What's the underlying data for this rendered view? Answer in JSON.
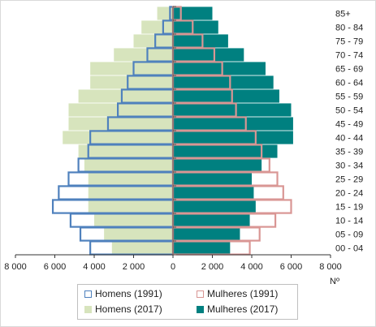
{
  "chart_data": {
    "type": "bar",
    "orientation": "horizontal",
    "style": "population-pyramid",
    "categories": [
      "00 - 04",
      "05 - 09",
      "10 - 14",
      "15 - 19",
      "20 - 24",
      "25 - 29",
      "30 - 34",
      "35 - 39",
      "40 - 44",
      "45 - 49",
      "50 - 54",
      "55 - 59",
      "60 - 64",
      "65 - 69",
      "70 - 74",
      "75 - 79",
      "80 - 84",
      "85+"
    ],
    "series": [
      {
        "name": "Homens (1991)",
        "side": "left",
        "style": "outline",
        "color": "#4f81bd",
        "values": [
          4200,
          4700,
          5200,
          6100,
          5800,
          5300,
          4800,
          4300,
          4200,
          3300,
          2800,
          2600,
          2300,
          2000,
          1300,
          900,
          500,
          150
        ]
      },
      {
        "name": "Mulheres (1991)",
        "side": "right",
        "style": "outline",
        "color": "#d99694",
        "values": [
          3900,
          4400,
          5200,
          6000,
          5600,
          5300,
          4900,
          4500,
          4200,
          3700,
          3200,
          3000,
          2900,
          2500,
          2100,
          1500,
          1000,
          400
        ]
      },
      {
        "name": "Homens (2017)",
        "side": "left",
        "style": "fill",
        "color": "#d7e4bd",
        "values": [
          3100,
          3500,
          4000,
          4300,
          4300,
          4300,
          4500,
          4800,
          5600,
          5300,
          5300,
          4800,
          4200,
          4200,
          3000,
          2000,
          1600,
          800
        ]
      },
      {
        "name": "Mulheres (2017)",
        "side": "right",
        "style": "fill",
        "color": "#008080",
        "values": [
          2900,
          3400,
          3900,
          4200,
          4100,
          4000,
          4500,
          5300,
          6100,
          6100,
          6000,
          5400,
          5100,
          4700,
          3600,
          2800,
          2300,
          2000
        ]
      }
    ],
    "xlabel": "Nº",
    "xlim": [
      -8000,
      8000
    ],
    "xticks": [
      -8000,
      -6000,
      -4000,
      -2000,
      0,
      2000,
      4000,
      6000,
      8000
    ],
    "xtick_labels": [
      "8 000",
      "6 000",
      "4 000",
      "2 000",
      "0",
      "2 000",
      "4 000",
      "6 000",
      "8 000"
    ],
    "grid": false,
    "legend_position": "bottom"
  },
  "legend": {
    "items": [
      {
        "label": "Homens (1991)",
        "style": "outline",
        "color": "#4f81bd"
      },
      {
        "label": "Mulheres (1991)",
        "style": "outline",
        "color": "#d99694"
      },
      {
        "label": "Homens (2017)",
        "style": "fill",
        "color": "#d7e4bd"
      },
      {
        "label": "Mulheres (2017)",
        "style": "fill",
        "color": "#008080"
      }
    ]
  }
}
